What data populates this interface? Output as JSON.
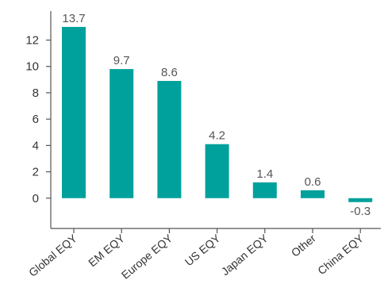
{
  "chart_data": {
    "type": "bar",
    "title": "",
    "xlabel": "",
    "ylabel": "",
    "categories": [
      "Global EQY",
      "EM EQY",
      "Europe EQY",
      "US EQY",
      "Japan EQY",
      "Other",
      "China EQY"
    ],
    "values": [
      13.7,
      9.7,
      8.6,
      4.2,
      1.4,
      0.6,
      -0.3
    ],
    "data_labels": [
      "13.7",
      "9.7",
      "8.6",
      "4.2",
      "1.4",
      "0.6",
      "-0.3"
    ],
    "bar_heights_visual": [
      13.0,
      9.8,
      8.9,
      4.1,
      1.2,
      0.6,
      -0.3
    ],
    "yticks": [
      0,
      2,
      4,
      6,
      8,
      10,
      12
    ],
    "ytick_labels": [
      "0",
      "2",
      "4",
      "6",
      "8",
      "10",
      "12"
    ],
    "ylim": [
      -2.3,
      14.2
    ],
    "grid": false,
    "legend": "none",
    "bar_color": "#00A19C"
  }
}
